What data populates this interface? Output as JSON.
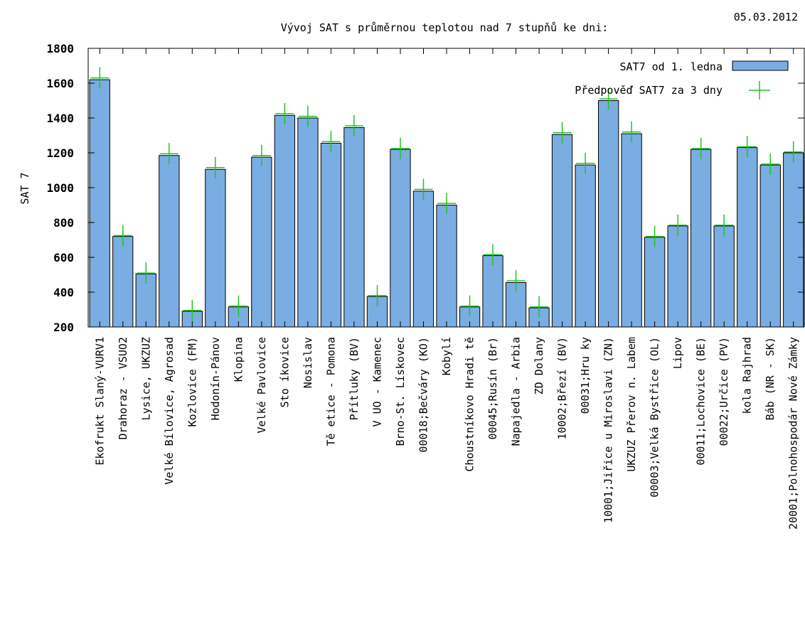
{
  "chart_data": {
    "type": "bar",
    "title": "Vývoj SAT s průměrnou teplotou nad 7 stupňů ke dni:",
    "date": "05.03.2012",
    "ylabel": "SAT 7",
    "xlabel": "",
    "ylim": [
      200,
      1800
    ],
    "yticks": [
      "200",
      "400",
      "600",
      "800",
      "1000",
      "1200",
      "1400",
      "1600",
      "1800"
    ],
    "grid": false,
    "legend_position": "top-right",
    "colors": {
      "bar": "#7aade2",
      "forecast": "#22c422",
      "axis": "#000000"
    },
    "categories": [
      "Ekofrukt Slaný-VURV1",
      "Drahoraz - VSUO2",
      "Lysice, UKZUZ",
      "Velké Bílovice, Agrosad",
      "Kozlovice (FM)",
      "Hodonín-Pánov",
      "Klopina",
      "Velké Pavlovice",
      "Sto íkovice",
      "Nosislav",
      "Tě etice - Pomona",
      "Přítluky (BV)",
      "V UO - Kamenec",
      "Brno-St. Lískovec",
      "00018;Bečváry (KO)",
      "Kobylí",
      "Choustníkovo Hradi tě",
      "00045;Rusín (Br)",
      "Napajedla - Arbia",
      "ZD Dolany",
      "10002;Březí (BV)",
      "00031;Hru ky",
      "10001;Jiřice u Miroslavi (ZN)",
      "UKZUZ Přerov n. Labem",
      "00003;Velká Bystřice (OL)",
      "Lipov",
      "00011;Lochovice (BE)",
      "00022;Určice (PV)",
      "kola Rajhrad",
      "Báb (NR - SK)",
      "20001;Polnohospodár Nové Zámky"
    ],
    "series": [
      {
        "name": "SAT7 od 1. ledna",
        "type": "bar",
        "values": [
          1620,
          720,
          505,
          1185,
          290,
          1105,
          315,
          1175,
          1415,
          1400,
          1255,
          1345,
          375,
          1220,
          980,
          900,
          315,
          610,
          455,
          310,
          1305,
          1130,
          1500,
          1310,
          715,
          780,
          1220,
          780,
          1230,
          1130,
          1200
        ]
      },
      {
        "name": "Předpověď SAT7 za 3 dny",
        "type": "points",
        "values": [
          1630,
          725,
          510,
          1195,
          295,
          1115,
          320,
          1185,
          1425,
          1410,
          1265,
          1355,
          380,
          1225,
          990,
          910,
          320,
          615,
          465,
          315,
          1315,
          1140,
          1510,
          1320,
          720,
          785,
          1225,
          785,
          1235,
          1135,
          1205
        ]
      }
    ]
  }
}
